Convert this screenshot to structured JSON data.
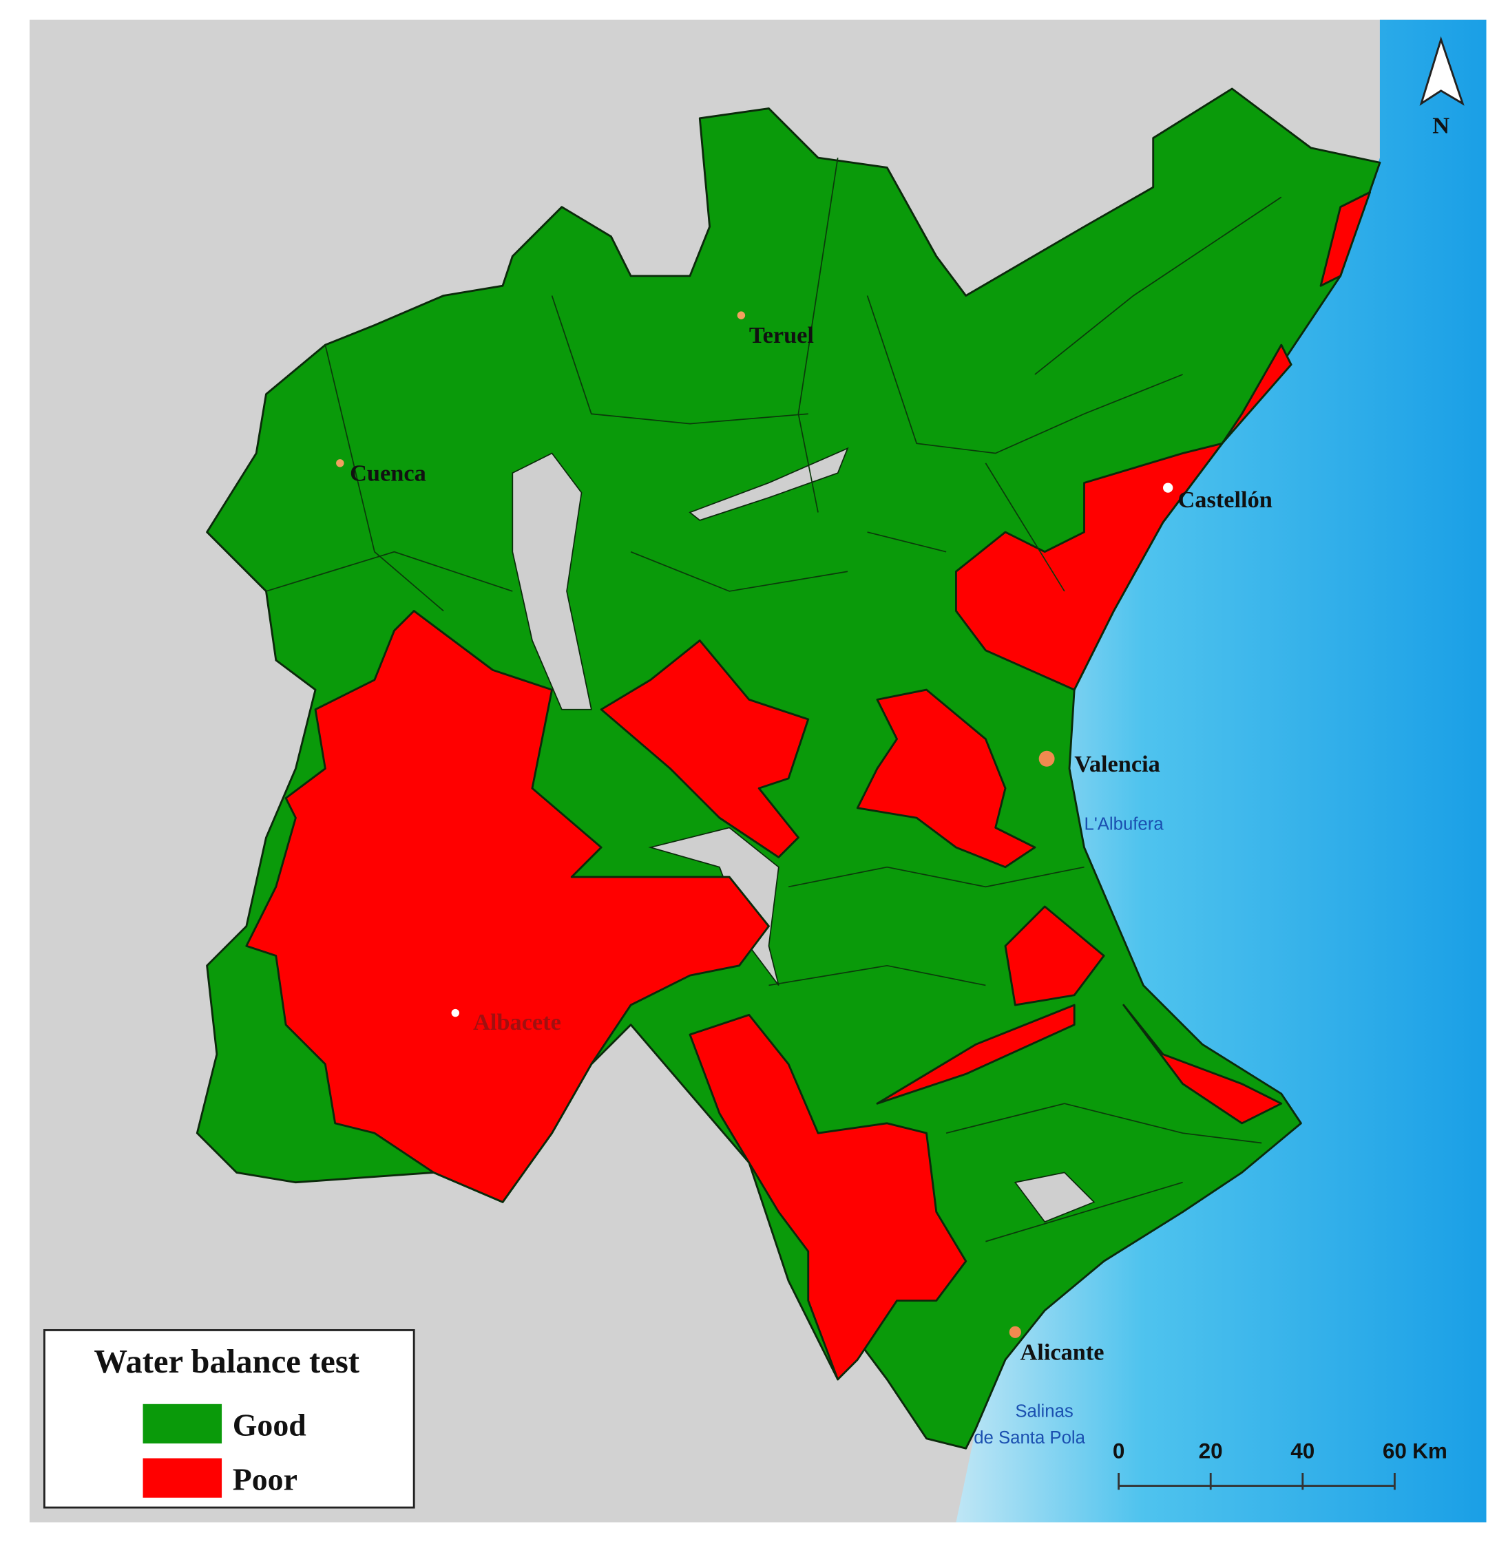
{
  "map": {
    "places": [
      "Teruel",
      "Cuenca",
      "Castellón",
      "Valencia",
      "Albacete",
      "Alicante"
    ],
    "water_labels": [
      "L'Albufera",
      "Salinas",
      "de Santa Pola"
    ],
    "north": "N",
    "legend": {
      "title": "Water balance test",
      "items": [
        {
          "label": "Good",
          "color": "#0a9a0a"
        },
        {
          "label": "Poor",
          "color": "#ff0000"
        }
      ]
    },
    "scale_bar": {
      "ticks": [
        0,
        20,
        40,
        60
      ],
      "unit": "Km"
    }
  }
}
